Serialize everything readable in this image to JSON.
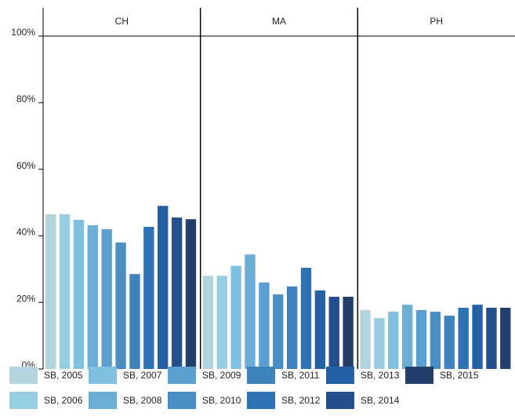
{
  "chart_data": {
    "type": "bar",
    "categories": [
      "CH",
      "MA",
      "PH"
    ],
    "ylim": [
      0,
      100
    ],
    "yticks": [
      {
        "value": 0,
        "label": "0%"
      },
      {
        "value": 20,
        "label": "20%"
      },
      {
        "value": 40,
        "label": "40%"
      },
      {
        "value": 60,
        "label": "60%"
      },
      {
        "value": 80,
        "label": "80%"
      },
      {
        "value": 100,
        "label": "100%"
      }
    ],
    "series": [
      {
        "name": "SB, 2005",
        "color": "#b3d4dc",
        "values": [
          46.5,
          28,
          17.7
        ]
      },
      {
        "name": "SB, 2006",
        "color": "#96cde0",
        "values": [
          46.5,
          28,
          15.3
        ]
      },
      {
        "name": "SB, 2007",
        "color": "#7fc0e0",
        "values": [
          44.8,
          31,
          17.2
        ]
      },
      {
        "name": "SB, 2008",
        "color": "#6aaed6",
        "values": [
          43.2,
          34.4,
          19.3
        ]
      },
      {
        "name": "SB, 2009",
        "color": "#5b9fd0",
        "values": [
          42,
          26,
          17.7
        ]
      },
      {
        "name": "SB, 2010",
        "color": "#4a8fc4",
        "values": [
          38,
          22.4,
          17.2
        ]
      },
      {
        "name": "SB, 2011",
        "color": "#3f83be",
        "values": [
          28.5,
          24.8,
          16
        ]
      },
      {
        "name": "SB, 2012",
        "color": "#2c72b5",
        "values": [
          42.7,
          30.4,
          18.4
        ]
      },
      {
        "name": "SB, 2013",
        "color": "#2660a4",
        "values": [
          49,
          23.6,
          19.3
        ]
      },
      {
        "name": "SB, 2014",
        "color": "#24518c",
        "values": [
          45.5,
          21.7,
          18.4
        ]
      },
      {
        "name": "SB, 2015",
        "color": "#243f6b",
        "values": [
          45,
          21.7,
          18.4
        ]
      }
    ]
  }
}
